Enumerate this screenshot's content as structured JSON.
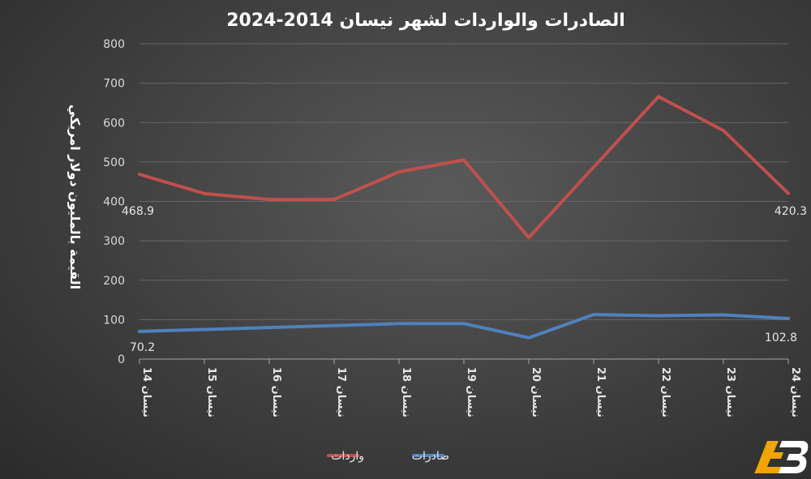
{
  "chart_data": {
    "type": "line",
    "title": "الصادرات والواردات لشهر نيسان 2014-2024",
    "ylabel": "القيمة بالمليون دولار امريكي",
    "xlabel": "",
    "ylim": [
      0,
      800
    ],
    "yticks": [
      0,
      100,
      200,
      300,
      400,
      500,
      600,
      700,
      800
    ],
    "grid": true,
    "legend_position": "bottom",
    "categories": [
      "نيسان 14",
      "نيسان 15",
      "نيسان 16",
      "نيسان 17",
      "نيسان 18",
      "نيسان 19",
      "نيسان 20",
      "نيسان 21",
      "نيسان 22",
      "نيسان 23",
      "نيسان 24"
    ],
    "series": [
      {
        "name": "واردات",
        "color": "#c0504d",
        "values": [
          468.9,
          420,
          405,
          405,
          475,
          505,
          308,
          487,
          666,
          580,
          420.3
        ],
        "labels": [
          {
            "index": 0,
            "text": "468.9"
          },
          {
            "index": 10,
            "text": "420.3"
          }
        ]
      },
      {
        "name": "صادرات",
        "color": "#4f81bd",
        "values": [
          70.2,
          75,
          80,
          85,
          90,
          90,
          54,
          113,
          110,
          112,
          102.8
        ],
        "labels": [
          {
            "index": 0,
            "text": "70.2"
          },
          {
            "index": 10,
            "text": "102.8"
          }
        ]
      }
    ]
  },
  "logo": {
    "text": "AB",
    "color": "#f0a500"
  }
}
